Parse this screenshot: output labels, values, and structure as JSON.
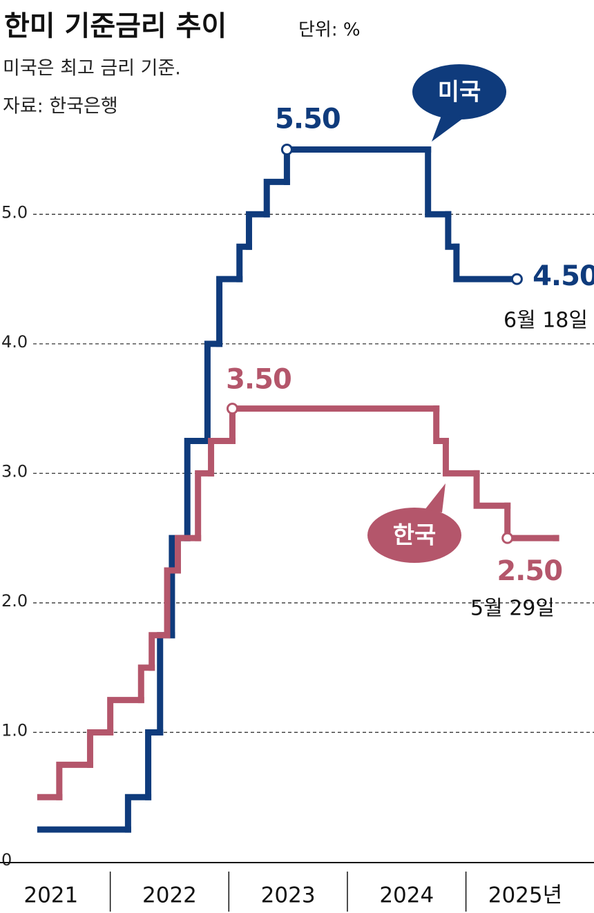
{
  "chart_data": {
    "type": "step",
    "title": "한미 기준금리 추이",
    "unit": "단위: %",
    "subtitle": "미국은 최고 금리 기준.",
    "source": "자료: 한국은행",
    "xlim": [
      2021.07,
      2026.08
    ],
    "xticks": [
      {
        "value": 2021.5,
        "label": "2021"
      },
      {
        "value": 2022.5,
        "label": "2022"
      },
      {
        "value": 2023.5,
        "label": "2023"
      },
      {
        "value": 2024.5,
        "label": "2024"
      },
      {
        "value": 2025.5,
        "label": "2025년"
      }
    ],
    "ylim": [
      0,
      6.5
    ],
    "yticks": [
      0,
      {
        "value": 1,
        "label": "1.0"
      },
      {
        "value": 2,
        "label": "2.0"
      },
      {
        "value": 3,
        "label": "3.0"
      },
      {
        "value": 4,
        "label": "4.0"
      },
      {
        "value": 5,
        "label": "5.0"
      }
    ],
    "grid": true,
    "series": [
      {
        "name": "미국",
        "color": "#0f3b7c",
        "x": [
          2021.41,
          2022.15,
          2022.32,
          2022.42,
          2022.52,
          2022.65,
          2022.82,
          2022.92,
          2023.09,
          2023.17,
          2023.32,
          2023.49,
          2024.68,
          2024.85,
          2024.92,
          2025.43
        ],
        "values": [
          0.25,
          0.5,
          1.0,
          1.75,
          2.5,
          3.25,
          4.0,
          4.5,
          4.75,
          5.0,
          5.25,
          5.5,
          5.0,
          4.75,
          4.5,
          4.5
        ],
        "value_labels": [
          null,
          null,
          null,
          null,
          null,
          null,
          null,
          null,
          null,
          null,
          null,
          "5.50",
          null,
          null,
          null,
          "4.50"
        ]
      },
      {
        "name": "한국",
        "color": "#b4566b",
        "x": [
          2021.41,
          2021.57,
          2021.83,
          2022.0,
          2022.26,
          2022.35,
          2022.48,
          2022.57,
          2022.74,
          2022.85,
          2023.03,
          2024.75,
          2024.83,
          2025.09,
          2025.35,
          2025.76
        ],
        "values": [
          0.5,
          0.75,
          1.0,
          1.25,
          1.5,
          1.75,
          2.25,
          2.5,
          3.0,
          3.25,
          3.5,
          3.25,
          3.0,
          2.75,
          2.5,
          2.5
        ],
        "value_labels": [
          null,
          null,
          null,
          null,
          null,
          null,
          null,
          null,
          null,
          null,
          "3.50",
          null,
          null,
          null,
          "2.50",
          null
        ]
      }
    ],
    "annotations": [
      "6월 18일",
      "5월 29일"
    ]
  }
}
